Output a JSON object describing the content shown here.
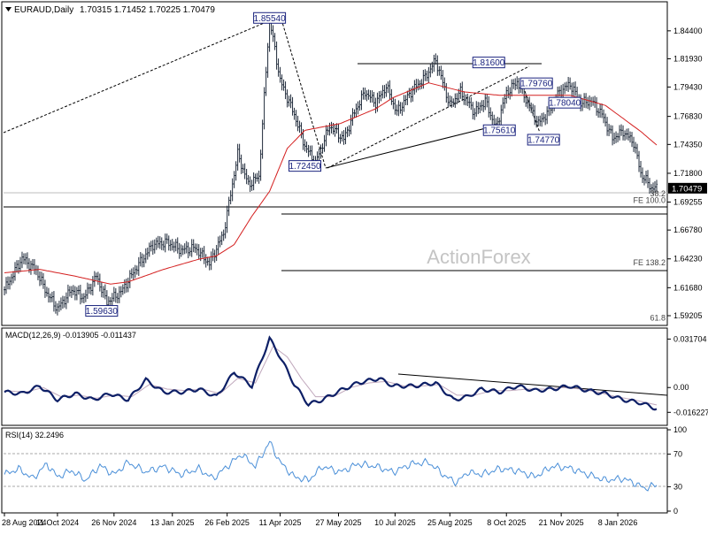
{
  "header": {
    "symbol_label": "EURAUD,Daily",
    "ohlc_values": "1.70315 1.71452 1.70225 1.70479"
  },
  "watermark": "ActionForex",
  "chart_data": [
    {
      "type": "candlestick",
      "panel": "price",
      "ylim": [
        1.585,
        1.865
      ],
      "y_ticks": [
        "1.84400",
        "1.81930",
        "1.79430",
        "1.76830",
        "1.74350",
        "1.71800",
        "1.69255",
        "1.66780",
        "1.64230",
        "1.61680",
        "1.59205"
      ],
      "y_tick_values": [
        1.844,
        1.8193,
        1.7943,
        1.7683,
        1.7435,
        1.718,
        1.69255,
        1.6678,
        1.6423,
        1.6168,
        1.59205
      ],
      "current_price_label": "1.70479",
      "current_price": 1.70479,
      "x_ticks": [
        "28 Aug 2024",
        "11 Oct 2024",
        "26 Nov 2024",
        "13 Jan 2025",
        "26 Feb 2025",
        "11 Apr 2025",
        "27 May 2025",
        "10 Jul 2025",
        "25 Aug 2025",
        "8 Oct 2025",
        "21 Nov 2025",
        "8 Jan 2026"
      ],
      "x_tick_index": [
        0,
        30,
        62,
        95,
        126,
        156,
        189,
        221,
        252,
        284,
        315,
        347
      ],
      "bar_count": 370,
      "series": [
        {
          "name": "Price",
          "anchors": [
            [
              0,
              1.615
            ],
            [
              10,
              1.643
            ],
            [
              18,
              1.632
            ],
            [
              24,
              1.612
            ],
            [
              30,
              1.598
            ],
            [
              38,
              1.615
            ],
            [
              45,
              1.608
            ],
            [
              52,
              1.627
            ],
            [
              58,
              1.604
            ],
            [
              66,
              1.613
            ],
            [
              74,
              1.633
            ],
            [
              84,
              1.655
            ],
            [
              92,
              1.657
            ],
            [
              100,
              1.65
            ],
            [
              108,
              1.652
            ],
            [
              116,
              1.638
            ],
            [
              124,
              1.665
            ],
            [
              132,
              1.735
            ],
            [
              138,
              1.708
            ],
            [
              144,
              1.715
            ],
            [
              150,
              1.855
            ],
            [
              156,
              1.8
            ],
            [
              164,
              1.77
            ],
            [
              170,
              1.742
            ],
            [
              176,
              1.727
            ],
            [
              184,
              1.76
            ],
            [
              192,
              1.748
            ],
            [
              198,
              1.772
            ],
            [
              204,
              1.79
            ],
            [
              210,
              1.78
            ],
            [
              216,
              1.795
            ],
            [
              222,
              1.772
            ],
            [
              230,
              1.79
            ],
            [
              238,
              1.803
            ],
            [
              244,
              1.818
            ],
            [
              252,
              1.778
            ],
            [
              258,
              1.79
            ],
            [
              266,
              1.772
            ],
            [
              272,
              1.782
            ],
            [
              278,
              1.758
            ],
            [
              284,
              1.789
            ],
            [
              290,
              1.799
            ],
            [
              296,
              1.78
            ],
            [
              302,
              1.762
            ],
            [
              308,
              1.773
            ],
            [
              314,
              1.79
            ],
            [
              320,
              1.797
            ],
            [
              326,
              1.78
            ],
            [
              332,
              1.782
            ],
            [
              338,
              1.77
            ],
            [
              344,
              1.749
            ],
            [
              350,
              1.755
            ],
            [
              356,
              1.745
            ],
            [
              360,
              1.718
            ],
            [
              366,
              1.705
            ],
            [
              369,
              1.7048
            ]
          ]
        },
        {
          "name": "SMA",
          "anchors": [
            [
              0,
              1.63
            ],
            [
              20,
              1.633
            ],
            [
              40,
              1.627
            ],
            [
              60,
              1.62
            ],
            [
              70,
              1.622
            ],
            [
              90,
              1.633
            ],
            [
              110,
              1.642
            ],
            [
              120,
              1.645
            ],
            [
              130,
              1.655
            ],
            [
              140,
              1.68
            ],
            [
              150,
              1.702
            ],
            [
              160,
              1.74
            ],
            [
              170,
              1.756
            ],
            [
              190,
              1.762
            ],
            [
              210,
              1.775
            ],
            [
              220,
              1.785
            ],
            [
              240,
              1.798
            ],
            [
              260,
              1.79
            ],
            [
              280,
              1.787
            ],
            [
              300,
              1.787
            ],
            [
              320,
              1.787
            ],
            [
              340,
              1.778
            ],
            [
              360,
              1.755
            ],
            [
              369,
              1.743
            ]
          ]
        }
      ],
      "labels": [
        {
          "text": "1.85540",
          "bar": 150,
          "price": 1.8554
        },
        {
          "text": "1.72450",
          "bar": 170,
          "price": 1.7245
        },
        {
          "text": "1.59630",
          "bar": 55,
          "price": 1.5963
        },
        {
          "text": "1.81600",
          "bar": 274,
          "price": 1.816
        },
        {
          "text": "1.79760",
          "bar": 301,
          "price": 1.7976
        },
        {
          "text": "1.78040",
          "bar": 317,
          "price": 1.7804
        },
        {
          "text": "1.75610",
          "bar": 280,
          "price": 1.7561
        },
        {
          "text": "1.74770",
          "bar": 305,
          "price": 1.7477
        }
      ],
      "fib_labels": [
        {
          "text": "38.2",
          "price": 1.7
        },
        {
          "text": "FE 100.0",
          "price": 1.694
        },
        {
          "text": "FE 138.2",
          "price": 1.639
        },
        {
          "text": "61.8",
          "price": 1.59
        }
      ]
    },
    {
      "type": "line",
      "panel": "macd",
      "title": "MACD(12,26,9) -0.013905 -0.011437",
      "ylim": [
        -0.023,
        0.036
      ],
      "y_ticks": [
        "0.031704",
        "0.00",
        "-0.016227"
      ],
      "y_tick_values": [
        0.031704,
        0.0,
        -0.016227
      ],
      "series": [
        {
          "name": "MACD",
          "anchors": [
            [
              0,
              -0.003
            ],
            [
              10,
              -0.004
            ],
            [
              20,
              0.001
            ],
            [
              30,
              -0.008
            ],
            [
              40,
              -0.004
            ],
            [
              50,
              -0.008
            ],
            [
              60,
              -0.004
            ],
            [
              70,
              -0.008
            ],
            [
              80,
              0.005
            ],
            [
              90,
              -0.003
            ],
            [
              100,
              -0.003
            ],
            [
              110,
              -0.001
            ],
            [
              120,
              -0.006
            ],
            [
              130,
              0.01
            ],
            [
              140,
              0.001
            ],
            [
              150,
              0.032
            ],
            [
              156,
              0.02
            ],
            [
              164,
              0.002
            ],
            [
              172,
              -0.011
            ],
            [
              180,
              -0.008
            ],
            [
              190,
              -0.002
            ],
            [
              200,
              0.003
            ],
            [
              212,
              0.006
            ],
            [
              220,
              0.001
            ],
            [
              232,
              0.001
            ],
            [
              244,
              0.003
            ],
            [
              254,
              -0.008
            ],
            [
              262,
              -0.006
            ],
            [
              270,
              -0.001
            ],
            [
              280,
              -0.003
            ],
            [
              290,
              0.001
            ],
            [
              300,
              -0.002
            ],
            [
              310,
              -0.001
            ],
            [
              320,
              0.001
            ],
            [
              330,
              -0.002
            ],
            [
              340,
              -0.004
            ],
            [
              350,
              -0.008
            ],
            [
              360,
              -0.01
            ],
            [
              369,
              -0.0139
            ]
          ]
        },
        {
          "name": "Signal",
          "anchors": [
            [
              0,
              -0.002
            ],
            [
              12,
              -0.003
            ],
            [
              22,
              0.0
            ],
            [
              32,
              -0.006
            ],
            [
              42,
              -0.005
            ],
            [
              52,
              -0.007
            ],
            [
              62,
              -0.005
            ],
            [
              72,
              -0.006
            ],
            [
              82,
              0.002
            ],
            [
              92,
              -0.001
            ],
            [
              102,
              -0.002
            ],
            [
              112,
              -0.001
            ],
            [
              122,
              -0.004
            ],
            [
              132,
              0.006
            ],
            [
              142,
              0.003
            ],
            [
              152,
              0.027
            ],
            [
              160,
              0.02
            ],
            [
              168,
              0.006
            ],
            [
              176,
              -0.006
            ],
            [
              186,
              -0.006
            ],
            [
              196,
              0.0
            ],
            [
              206,
              0.003
            ],
            [
              216,
              0.004
            ],
            [
              226,
              0.001
            ],
            [
              236,
              0.001
            ],
            [
              246,
              0.002
            ],
            [
              256,
              -0.005
            ],
            [
              266,
              -0.005
            ],
            [
              276,
              -0.002
            ],
            [
              286,
              -0.002
            ],
            [
              296,
              -0.001
            ],
            [
              306,
              -0.001
            ],
            [
              316,
              0.0
            ],
            [
              326,
              -0.001
            ],
            [
              336,
              -0.003
            ],
            [
              346,
              -0.006
            ],
            [
              356,
              -0.008
            ],
            [
              369,
              -0.0114
            ]
          ]
        }
      ]
    },
    {
      "type": "line",
      "panel": "rsi",
      "title": "RSI(14) 32.2496",
      "ylim": [
        0,
        100
      ],
      "y_ticks": [
        "100",
        "70",
        "30",
        "0"
      ],
      "y_tick_values": [
        100,
        70,
        30,
        0
      ],
      "series": [
        {
          "name": "RSI",
          "anchors": [
            [
              0,
              45
            ],
            [
              8,
              52
            ],
            [
              16,
              40
            ],
            [
              24,
              58
            ],
            [
              30,
              42
            ],
            [
              38,
              50
            ],
            [
              46,
              38
            ],
            [
              54,
              56
            ],
            [
              62,
              45
            ],
            [
              70,
              60
            ],
            [
              80,
              48
            ],
            [
              90,
              55
            ],
            [
              100,
              45
            ],
            [
              110,
              52
            ],
            [
              118,
              40
            ],
            [
              126,
              55
            ],
            [
              134,
              70
            ],
            [
              142,
              55
            ],
            [
              150,
              85
            ],
            [
              156,
              60
            ],
            [
              164,
              42
            ],
            [
              172,
              38
            ],
            [
              180,
              55
            ],
            [
              190,
              48
            ],
            [
              200,
              58
            ],
            [
              210,
              55
            ],
            [
              220,
              48
            ],
            [
              230,
              58
            ],
            [
              240,
              60
            ],
            [
              250,
              42
            ],
            [
              256,
              35
            ],
            [
              262,
              48
            ],
            [
              270,
              45
            ],
            [
              280,
              52
            ],
            [
              290,
              50
            ],
            [
              300,
              42
            ],
            [
              310,
              55
            ],
            [
              320,
              53
            ],
            [
              330,
              45
            ],
            [
              340,
              38
            ],
            [
              350,
              40
            ],
            [
              356,
              35
            ],
            [
              362,
              28
            ],
            [
              369,
              32.25
            ]
          ]
        }
      ]
    }
  ],
  "colors": {
    "candle": "#1f2a3a",
    "sma": "#d42020",
    "macd": "#0d1f66",
    "signal": "#c0a8bc",
    "rsi": "#4a8fd8",
    "label_border": "#1a237e"
  }
}
